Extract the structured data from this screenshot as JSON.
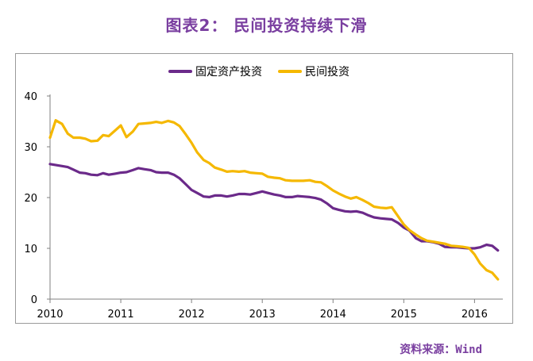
{
  "title": "图表2：  民间投资持续下滑",
  "source": "资料来源：Wind",
  "chart_data": {
    "type": "line",
    "title": "图表2：  民间投资持续下滑",
    "xlabel": "",
    "ylabel": "",
    "xlim": [
      2010,
      2016.35
    ],
    "ylim": [
      0,
      40
    ],
    "yticks": [
      0,
      10,
      20,
      30,
      40
    ],
    "xticks": [
      2010,
      2011,
      2012,
      2013,
      2014,
      2015,
      2016
    ],
    "legend_position": "top-center",
    "grid": false,
    "series": [
      {
        "name": "固定资产投资",
        "color": "#6b2a8a",
        "points": [
          [
            2010.0,
            26.6
          ],
          [
            2010.17,
            26.2
          ],
          [
            2010.25,
            26.0
          ],
          [
            2010.33,
            25.5
          ],
          [
            2010.42,
            24.9
          ],
          [
            2010.5,
            24.8
          ],
          [
            2010.58,
            24.5
          ],
          [
            2010.67,
            24.4
          ],
          [
            2010.75,
            24.8
          ],
          [
            2010.83,
            24.5
          ],
          [
            2010.92,
            24.7
          ],
          [
            2011.0,
            24.9
          ],
          [
            2011.08,
            25.0
          ],
          [
            2011.17,
            25.4
          ],
          [
            2011.25,
            25.8
          ],
          [
            2011.33,
            25.6
          ],
          [
            2011.42,
            25.4
          ],
          [
            2011.5,
            25.0
          ],
          [
            2011.58,
            24.9
          ],
          [
            2011.67,
            24.9
          ],
          [
            2011.75,
            24.5
          ],
          [
            2011.83,
            23.8
          ],
          [
            2011.92,
            22.6
          ],
          [
            2012.0,
            21.5
          ],
          [
            2012.08,
            20.9
          ],
          [
            2012.17,
            20.2
          ],
          [
            2012.25,
            20.1
          ],
          [
            2012.33,
            20.4
          ],
          [
            2012.42,
            20.4
          ],
          [
            2012.5,
            20.2
          ],
          [
            2012.58,
            20.4
          ],
          [
            2012.67,
            20.7
          ],
          [
            2012.75,
            20.7
          ],
          [
            2012.83,
            20.6
          ],
          [
            2012.92,
            20.9
          ],
          [
            2013.0,
            21.2
          ],
          [
            2013.08,
            20.9
          ],
          [
            2013.17,
            20.6
          ],
          [
            2013.25,
            20.4
          ],
          [
            2013.33,
            20.1
          ],
          [
            2013.42,
            20.1
          ],
          [
            2013.5,
            20.3
          ],
          [
            2013.58,
            20.2
          ],
          [
            2013.67,
            20.1
          ],
          [
            2013.75,
            19.9
          ],
          [
            2013.83,
            19.6
          ],
          [
            2013.92,
            18.8
          ],
          [
            2014.0,
            17.9
          ],
          [
            2014.08,
            17.6
          ],
          [
            2014.17,
            17.3
          ],
          [
            2014.25,
            17.2
          ],
          [
            2014.33,
            17.3
          ],
          [
            2014.42,
            17.0
          ],
          [
            2014.5,
            16.5
          ],
          [
            2014.58,
            16.1
          ],
          [
            2014.67,
            15.9
          ],
          [
            2014.75,
            15.8
          ],
          [
            2014.83,
            15.7
          ],
          [
            2014.92,
            15.0
          ],
          [
            2015.0,
            14.1
          ],
          [
            2015.08,
            13.5
          ],
          [
            2015.17,
            12.0
          ],
          [
            2015.25,
            11.4
          ],
          [
            2015.33,
            11.4
          ],
          [
            2015.42,
            11.2
          ],
          [
            2015.5,
            10.9
          ],
          [
            2015.58,
            10.3
          ],
          [
            2015.67,
            10.2
          ],
          [
            2015.75,
            10.2
          ],
          [
            2015.83,
            10.1
          ],
          [
            2015.92,
            10.0
          ],
          [
            2016.0,
            10.0
          ],
          [
            2016.08,
            10.2
          ],
          [
            2016.17,
            10.7
          ],
          [
            2016.25,
            10.5
          ],
          [
            2016.33,
            9.6
          ]
        ]
      },
      {
        "name": "民间投资",
        "color": "#f5b800",
        "points": [
          [
            2010.0,
            31.8
          ],
          [
            2010.08,
            35.2
          ],
          [
            2010.17,
            34.5
          ],
          [
            2010.25,
            32.6
          ],
          [
            2010.33,
            31.8
          ],
          [
            2010.42,
            31.8
          ],
          [
            2010.5,
            31.6
          ],
          [
            2010.58,
            31.1
          ],
          [
            2010.67,
            31.2
          ],
          [
            2010.75,
            32.3
          ],
          [
            2010.83,
            32.1
          ],
          [
            2010.92,
            33.2
          ],
          [
            2011.0,
            34.2
          ],
          [
            2011.08,
            31.9
          ],
          [
            2011.17,
            33.0
          ],
          [
            2011.25,
            34.5
          ],
          [
            2011.33,
            34.6
          ],
          [
            2011.42,
            34.7
          ],
          [
            2011.5,
            34.9
          ],
          [
            2011.58,
            34.7
          ],
          [
            2011.67,
            35.1
          ],
          [
            2011.75,
            34.8
          ],
          [
            2011.83,
            34.1
          ],
          [
            2011.92,
            32.4
          ],
          [
            2012.0,
            30.8
          ],
          [
            2012.08,
            28.9
          ],
          [
            2012.17,
            27.4
          ],
          [
            2012.25,
            26.8
          ],
          [
            2012.33,
            25.9
          ],
          [
            2012.42,
            25.5
          ],
          [
            2012.5,
            25.1
          ],
          [
            2012.58,
            25.2
          ],
          [
            2012.67,
            25.1
          ],
          [
            2012.75,
            25.2
          ],
          [
            2012.83,
            24.9
          ],
          [
            2012.92,
            24.8
          ],
          [
            2013.0,
            24.7
          ],
          [
            2013.08,
            24.1
          ],
          [
            2013.17,
            23.9
          ],
          [
            2013.25,
            23.8
          ],
          [
            2013.33,
            23.4
          ],
          [
            2013.42,
            23.3
          ],
          [
            2013.5,
            23.3
          ],
          [
            2013.58,
            23.3
          ],
          [
            2013.67,
            23.4
          ],
          [
            2013.75,
            23.1
          ],
          [
            2013.83,
            23.0
          ],
          [
            2013.92,
            22.2
          ],
          [
            2014.0,
            21.4
          ],
          [
            2014.08,
            20.8
          ],
          [
            2014.17,
            20.2
          ],
          [
            2014.25,
            19.8
          ],
          [
            2014.33,
            20.1
          ],
          [
            2014.42,
            19.5
          ],
          [
            2014.5,
            18.9
          ],
          [
            2014.58,
            18.2
          ],
          [
            2014.67,
            18.0
          ],
          [
            2014.75,
            17.9
          ],
          [
            2014.83,
            18.1
          ],
          [
            2014.92,
            16.3
          ],
          [
            2015.0,
            14.7
          ],
          [
            2015.08,
            13.6
          ],
          [
            2015.17,
            12.7
          ],
          [
            2015.25,
            12.0
          ],
          [
            2015.33,
            11.5
          ],
          [
            2015.42,
            11.3
          ],
          [
            2015.5,
            11.1
          ],
          [
            2015.58,
            10.9
          ],
          [
            2015.67,
            10.5
          ],
          [
            2015.75,
            10.4
          ],
          [
            2015.83,
            10.3
          ],
          [
            2015.92,
            10.1
          ],
          [
            2016.0,
            8.8
          ],
          [
            2016.08,
            7.0
          ],
          [
            2016.17,
            5.7
          ],
          [
            2016.25,
            5.2
          ],
          [
            2016.33,
            3.9
          ]
        ]
      }
    ]
  }
}
